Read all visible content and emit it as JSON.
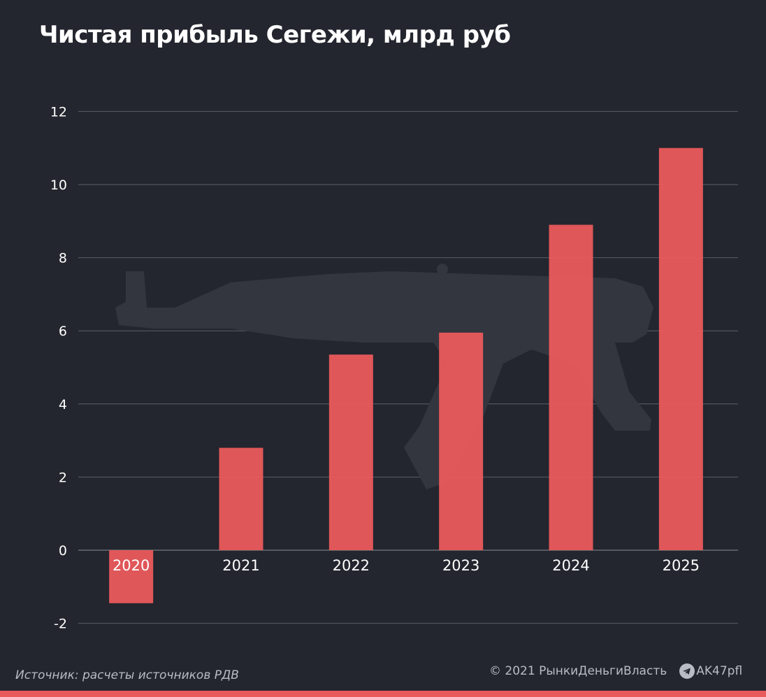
{
  "title": "Чистая прибыль Сегежи, млрд руб",
  "footer": {
    "source": "Источник: расчеты источников РДВ",
    "copyright": "© 2021  РынкиДеньгиВласть",
    "channel": "AK47pfl",
    "channel_icon": "telegram-icon"
  },
  "colors": {
    "background": "#23262e",
    "bar": "#e85a5c",
    "grid": "#5a5e67",
    "text": "#ffffff",
    "muted": "#b9bcc3",
    "watermark": "#33363e",
    "bottom_bar": "#e85a5c"
  },
  "watermark_icon": "rifle-silhouette",
  "chart_data": {
    "type": "bar",
    "categories": [
      "2020",
      "2021",
      "2022",
      "2023",
      "2024",
      "2025"
    ],
    "values": [
      -1.45,
      2.8,
      5.35,
      5.95,
      8.9,
      11.0
    ],
    "yticks": [
      -2,
      0,
      2,
      4,
      6,
      8,
      10,
      12
    ],
    "ylim": [
      -2.3,
      12
    ],
    "grid": true,
    "legend": "none"
  }
}
